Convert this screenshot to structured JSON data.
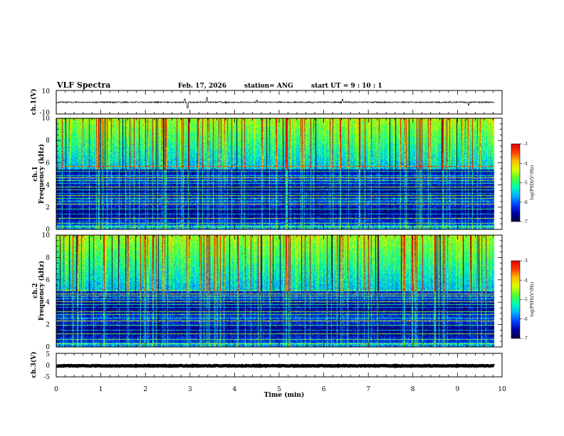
{
  "header": {
    "title": "VLF Spectra",
    "date": "Feb. 17, 2026",
    "station": "station= ANG",
    "start": "start  UT  =   9 : 10 : 1"
  },
  "chart_data": [
    {
      "type": "line",
      "id": "ch1-waveform",
      "ylabel": "ch.1(V)",
      "ylim": [
        -10,
        10
      ],
      "yticks": [
        "10",
        "-10"
      ],
      "xlim": [
        0,
        10
      ],
      "baseline": 0,
      "noise_amplitude": 0.6,
      "spikes": [
        {
          "t": 2.88,
          "v": 2.9
        },
        {
          "t": 2.95,
          "v": -5.0
        },
        {
          "t": 3.38,
          "v": 4.2
        },
        {
          "t": 4.5,
          "v": 1.8
        },
        {
          "t": 6.42,
          "v": 2.6
        },
        {
          "t": 9.25,
          "v": -2.6
        }
      ]
    },
    {
      "type": "heatmap",
      "id": "ch1-spectrogram",
      "ylabel": "ch.1\nFrequency  (kHz)",
      "ylim": [
        0,
        10
      ],
      "yticks": [
        "0",
        "2",
        "4",
        "6",
        "8",
        "10"
      ],
      "xlim": [
        0,
        10
      ],
      "data_end_min": 9.82,
      "colorbar": {
        "min": -7,
        "max": -3,
        "ticks": [
          "-3",
          "-4",
          "-5",
          "-6",
          "-7"
        ],
        "label": "log(PSD)(V²/Hz)"
      },
      "noise_cutoff_khz": 5.4,
      "lines_khz": [
        0.25,
        0.6,
        1.05,
        1.4,
        1.85,
        2.3,
        2.55,
        2.8,
        3.05,
        3.25,
        3.6,
        3.85,
        4.15,
        4.4,
        4.65,
        4.9,
        5.25,
        5.7
      ],
      "seed": 17
    },
    {
      "type": "heatmap",
      "id": "ch2-spectrogram",
      "ylabel": "ch.2\nFrequency  (kHz)",
      "ylim": [
        0,
        10
      ],
      "yticks": [
        "0",
        "2",
        "4",
        "6",
        "8",
        "10"
      ],
      "xlim": [
        0,
        10
      ],
      "data_end_min": 9.82,
      "colorbar": {
        "min": -7,
        "max": -3,
        "ticks": [
          "-3",
          "-4",
          "-5",
          "-6",
          "-7"
        ],
        "label": "log(PSD)(V²/Hz)"
      },
      "noise_cutoff_khz": 5.0,
      "lines_khz": [
        0.35,
        0.7,
        1.2,
        1.5,
        2.0,
        2.35,
        2.6,
        2.95,
        3.2,
        3.55,
        3.8,
        4.05,
        4.35,
        4.6,
        4.8,
        5.1
      ],
      "seed": 29
    },
    {
      "type": "line",
      "id": "ch3-waveform",
      "ylabel": "ch.3(V)",
      "ylim": [
        -5,
        5
      ],
      "yticks": [
        "5",
        "0",
        "-5"
      ],
      "xlim": [
        0,
        10
      ],
      "baseline": -0.3,
      "noise_amplitude": 0.15,
      "spikes": []
    }
  ],
  "x_axis": {
    "label": "Time  (min)",
    "ticks": [
      "0",
      "1",
      "2",
      "3",
      "4",
      "5",
      "6",
      "7",
      "8",
      "9",
      "10"
    ]
  },
  "colors": {
    "spectrum": [
      "#000000",
      "#000040",
      "#0000aa",
      "#0044ff",
      "#00b4ff",
      "#00ffb0",
      "#50ff30",
      "#d8ff00",
      "#ffc000",
      "#ff4000",
      "#e00000",
      "#ffffff"
    ]
  }
}
